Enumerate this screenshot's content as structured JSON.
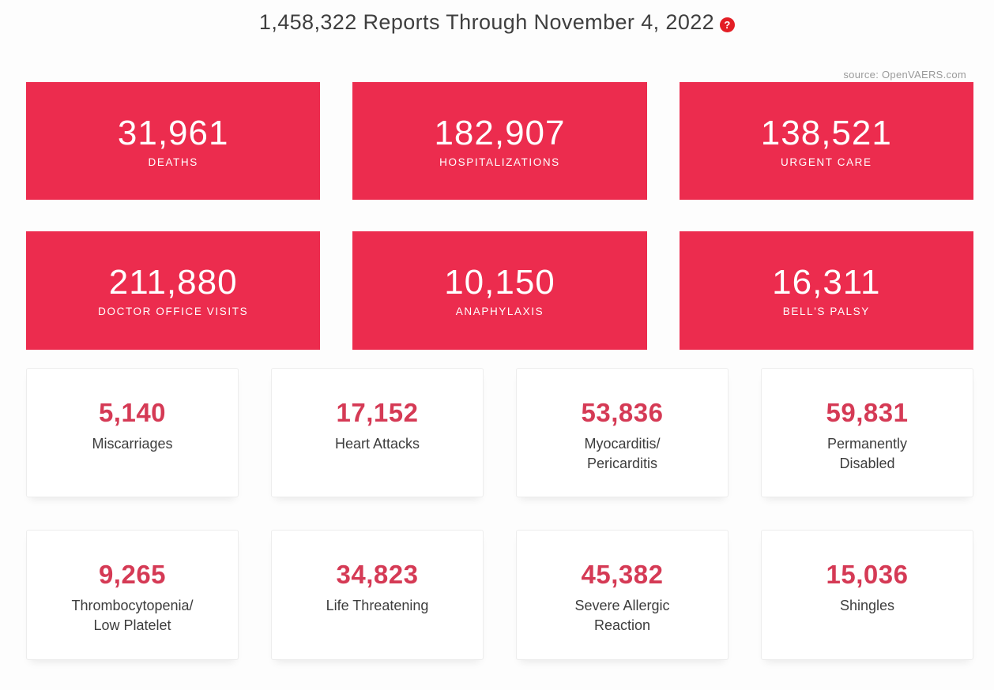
{
  "header": {
    "title": "1,458,322 Reports Through November 4, 2022",
    "help_icon_glyph": "?",
    "source": "source: OpenVAERS.com"
  },
  "colors": {
    "tile_red": "#ec2c4e",
    "number_red": "#d53a55",
    "help_red": "#e31e25",
    "title_text": "#3f3f3f",
    "source_text": "#9a9a9a",
    "label_text": "#3d3d3d",
    "card_border": "#ededed",
    "page_bg": "#fdfdfd"
  },
  "tiles_primary": [
    {
      "value": "31,961",
      "label": "DEATHS"
    },
    {
      "value": "182,907",
      "label": "HOSPITALIZATIONS"
    },
    {
      "value": "138,521",
      "label": "URGENT CARE"
    },
    {
      "value": "211,880",
      "label": "DOCTOR OFFICE VISITS"
    },
    {
      "value": "10,150",
      "label": "ANAPHYLAXIS"
    },
    {
      "value": "16,311",
      "label": "BELL'S PALSY"
    }
  ],
  "tiles_secondary": [
    {
      "value": "5,140",
      "label": "Miscarriages"
    },
    {
      "value": "17,152",
      "label": "Heart Attacks"
    },
    {
      "value": "53,836",
      "label": "Myocarditis/\nPericarditis"
    },
    {
      "value": "59,831",
      "label": "Permanently\nDisabled"
    },
    {
      "value": "9,265",
      "label": "Thrombocytopenia/\nLow Platelet"
    },
    {
      "value": "34,823",
      "label": "Life Threatening"
    },
    {
      "value": "45,382",
      "label": "Severe Allergic\nReaction"
    },
    {
      "value": "15,036",
      "label": "Shingles"
    }
  ],
  "chart_data": {
    "type": "table",
    "title": "1,458,322 Reports Through November 4, 2022",
    "source": "source: OpenVAERS.com",
    "total_reports": 1458322,
    "categories": [
      "Deaths",
      "Hospitalizations",
      "Urgent Care",
      "Doctor Office Visits",
      "Anaphylaxis",
      "Bell's Palsy",
      "Miscarriages",
      "Heart Attacks",
      "Myocarditis/Pericarditis",
      "Permanently Disabled",
      "Thrombocytopenia/Low Platelet",
      "Life Threatening",
      "Severe Allergic Reaction",
      "Shingles"
    ],
    "values": [
      31961,
      182907,
      138521,
      211880,
      10150,
      16311,
      5140,
      17152,
      53836,
      59831,
      9265,
      34823,
      45382,
      15036
    ],
    "layout": "2 rows of 3 red highlight tiles, then 2 rows of 4 white cards"
  }
}
